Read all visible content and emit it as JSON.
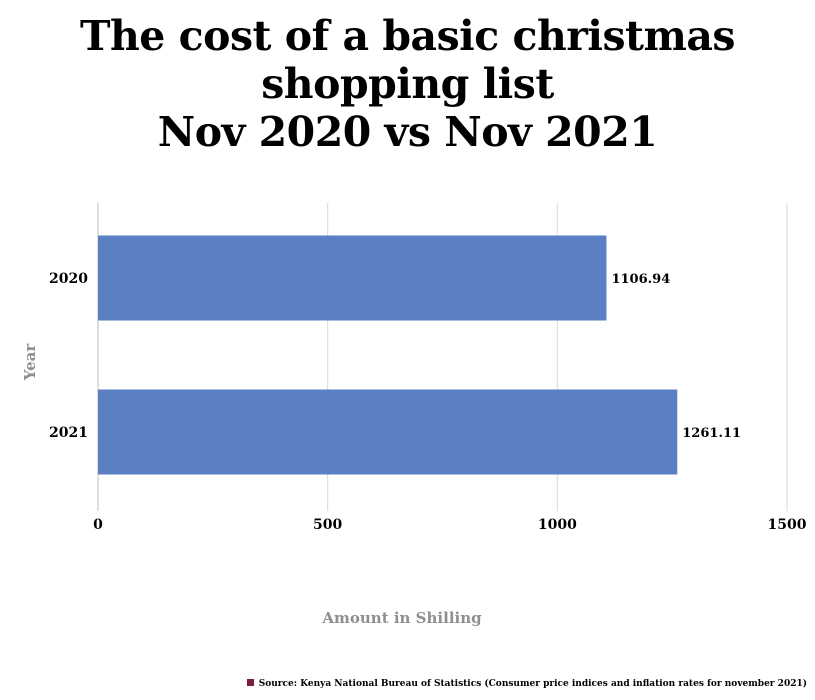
{
  "title_lines": [
    "The cost of a basic christmas",
    "shopping list",
    "Nov 2020 vs Nov 2021"
  ],
  "source": "Source: Kenya National Bureau of Statistics (Consumer price indices and inflation rates for november 2021)",
  "colors": {
    "bar": "#5a7fc2",
    "grid": "#d9d9d9",
    "axis_label": "#8f8f8f",
    "source_swatch": "#7a1f3d"
  },
  "chart_data": {
    "type": "bar",
    "orientation": "horizontal",
    "categories": [
      "2020",
      "2021"
    ],
    "values": [
      1106.94,
      1261.11
    ],
    "data_labels": [
      "1106.94",
      "1261.11"
    ],
    "xlabel": "Amount in Shilling",
    "ylabel": "Year",
    "xlim": [
      0,
      1500
    ],
    "xticks": [
      0,
      500,
      1000,
      1500
    ],
    "grid": "vertical",
    "legend": "none"
  }
}
